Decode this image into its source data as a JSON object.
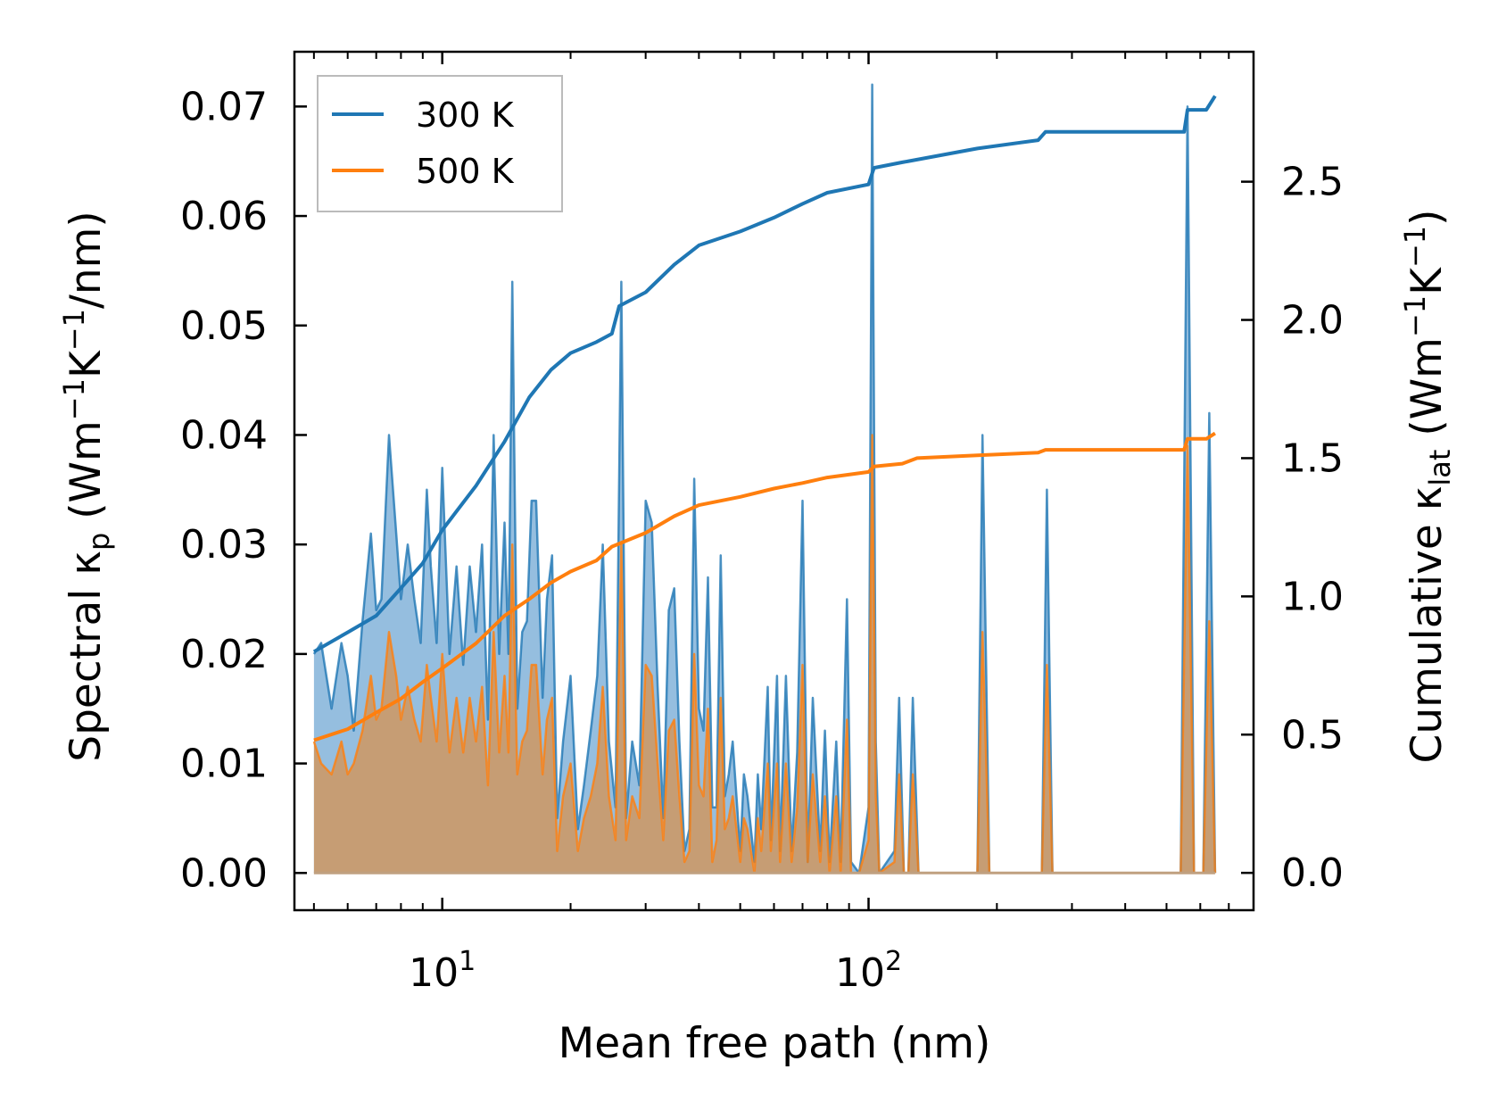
{
  "chart_data": {
    "type": "line",
    "title": "",
    "xlabel": "Mean free path (nm)",
    "xscale": "log",
    "xlim": [
      4.5,
      800
    ],
    "x_ticks": [
      {
        "value": 10,
        "base": "10",
        "exp": "1"
      },
      {
        "value": 100,
        "base": "10",
        "exp": "2"
      }
    ],
    "ylabel_left": {
      "prefix": "Spectral κ",
      "sub": "p",
      "mid": " (Wm",
      "sup1": "−1",
      "k": "K",
      "sup2": "−1",
      "suffix": "/nm)"
    },
    "ylim_left": [
      -0.0034,
      0.075
    ],
    "y_ticks_left": [
      "0.00",
      "0.01",
      "0.02",
      "0.03",
      "0.04",
      "0.05",
      "0.06",
      "0.07"
    ],
    "ylabel_right": {
      "prefix": "Cumulative κ",
      "sub": "lat",
      "mid": " (Wm",
      "sup1": "−1",
      "k": "K",
      "sup2": "−1",
      "suffix": ")"
    },
    "ylim_right": [
      -0.135,
      2.97
    ],
    "y_ticks_right": [
      "0.0",
      "0.5",
      "1.0",
      "1.5",
      "2.0",
      "2.5"
    ],
    "legend": {
      "placement": "top-left",
      "entries": [
        "300 K",
        "500 K"
      ]
    },
    "grid": false,
    "colors": {
      "s300": "#1f77b4",
      "s500": "#ff7f0e",
      "fill300": "#8ab7dc",
      "fill500": "#c89b6e"
    },
    "series": [
      {
        "name": "300 K",
        "spectral_axis": "left",
        "spectral": [
          [
            5,
            0.02
          ],
          [
            5.2,
            0.021
          ],
          [
            5.5,
            0.015
          ],
          [
            5.8,
            0.021
          ],
          [
            6,
            0.018
          ],
          [
            6.2,
            0.013
          ],
          [
            6.5,
            0.023
          ],
          [
            6.8,
            0.031
          ],
          [
            7,
            0.024
          ],
          [
            7.2,
            0.025
          ],
          [
            7.5,
            0.04
          ],
          [
            7.8,
            0.031
          ],
          [
            8,
            0.025
          ],
          [
            8.3,
            0.03
          ],
          [
            8.6,
            0.025
          ],
          [
            8.9,
            0.021
          ],
          [
            9.2,
            0.035
          ],
          [
            9.4,
            0.028
          ],
          [
            9.7,
            0.021
          ],
          [
            10,
            0.037
          ],
          [
            10.4,
            0.02
          ],
          [
            10.8,
            0.028
          ],
          [
            11.2,
            0.019
          ],
          [
            11.6,
            0.028
          ],
          [
            12,
            0.022
          ],
          [
            12.4,
            0.03
          ],
          [
            12.8,
            0.014
          ],
          [
            13.2,
            0.04
          ],
          [
            13.6,
            0.02
          ],
          [
            14,
            0.032
          ],
          [
            14.3,
            0.02
          ],
          [
            14.6,
            0.054
          ],
          [
            15,
            0.015
          ],
          [
            15.4,
            0.022
          ],
          [
            15.8,
            0.023
          ],
          [
            16.2,
            0.034
          ],
          [
            16.6,
            0.034
          ],
          [
            17.2,
            0.016
          ],
          [
            17.6,
            0.025
          ],
          [
            18.1,
            0.029
          ],
          [
            18.6,
            0.005
          ],
          [
            19.2,
            0.012
          ],
          [
            20,
            0.018
          ],
          [
            20.8,
            0.004
          ],
          [
            21.5,
            0.008
          ],
          [
            22.3,
            0.013
          ],
          [
            23.1,
            0.018
          ],
          [
            23.8,
            0.03
          ],
          [
            24.6,
            0.012
          ],
          [
            25.5,
            0.006
          ],
          [
            26.3,
            0.054
          ],
          [
            27,
            0.005
          ],
          [
            27.9,
            0.012
          ],
          [
            29,
            0.008
          ],
          [
            30,
            0.034
          ],
          [
            31,
            0.032
          ],
          [
            32,
            0.017
          ],
          [
            33,
            0.005
          ],
          [
            34,
            0.024
          ],
          [
            35,
            0.026
          ],
          [
            36,
            0.012
          ],
          [
            37,
            0.002
          ],
          [
            38,
            0.004
          ],
          [
            39,
            0.036
          ],
          [
            40,
            0.015
          ],
          [
            41,
            0.013
          ],
          [
            42,
            0.027
          ],
          [
            43,
            0.006
          ],
          [
            44,
            0.006
          ],
          [
            45,
            0.029
          ],
          [
            46,
            0.007
          ],
          [
            47,
            0.009
          ],
          [
            48,
            0.012
          ],
          [
            50,
            0.002
          ],
          [
            51,
            0.009
          ],
          [
            52,
            0.007
          ],
          [
            54,
            0.001
          ],
          [
            55,
            0.009
          ],
          [
            56,
            0.004
          ],
          [
            58,
            0.017
          ],
          [
            59,
            0.003
          ],
          [
            61,
            0.018
          ],
          [
            62,
            0.002
          ],
          [
            64,
            0.018
          ],
          [
            66,
            0.002
          ],
          [
            68,
            0.011
          ],
          [
            70,
            0.034
          ],
          [
            72,
            0.001
          ],
          [
            74,
            0.016
          ],
          [
            77,
            0.002
          ],
          [
            79,
            0.013
          ],
          [
            81,
            0.001
          ],
          [
            84,
            0.012
          ],
          [
            86,
            0.001
          ],
          [
            89,
            0.025
          ],
          [
            91,
            0.001
          ],
          [
            95,
            0
          ],
          [
            100,
            0.006
          ],
          [
            102,
            0.072
          ],
          [
            104,
            0.012
          ],
          [
            106,
            0
          ],
          [
            115,
            0.002
          ],
          [
            118,
            0.016
          ],
          [
            121,
            0
          ],
          [
            124,
            0
          ],
          [
            127,
            0.016
          ],
          [
            131,
            0
          ],
          [
            180,
            0
          ],
          [
            185,
            0.04
          ],
          [
            192,
            0
          ],
          [
            255,
            0
          ],
          [
            262,
            0.035
          ],
          [
            270,
            0
          ],
          [
            540,
            0
          ],
          [
            560,
            0.07
          ],
          [
            580,
            0
          ],
          [
            610,
            0
          ],
          [
            630,
            0.042
          ],
          [
            650,
            0
          ]
        ],
        "cumulative_axis": "right",
        "cumulative": [
          [
            5,
            0.8
          ],
          [
            6,
            0.87
          ],
          [
            7,
            0.93
          ],
          [
            8,
            1.03
          ],
          [
            9,
            1.12
          ],
          [
            10,
            1.24
          ],
          [
            12,
            1.4
          ],
          [
            14,
            1.56
          ],
          [
            16,
            1.72
          ],
          [
            18,
            1.82
          ],
          [
            20,
            1.88
          ],
          [
            23,
            1.92
          ],
          [
            25,
            1.95
          ],
          [
            26,
            2.05
          ],
          [
            30,
            2.1
          ],
          [
            35,
            2.2
          ],
          [
            40,
            2.27
          ],
          [
            50,
            2.32
          ],
          [
            60,
            2.37
          ],
          [
            70,
            2.42
          ],
          [
            80,
            2.46
          ],
          [
            100,
            2.49
          ],
          [
            103,
            2.55
          ],
          [
            120,
            2.57
          ],
          [
            180,
            2.62
          ],
          [
            250,
            2.65
          ],
          [
            260,
            2.68
          ],
          [
            550,
            2.68
          ],
          [
            560,
            2.76
          ],
          [
            620,
            2.76
          ],
          [
            650,
            2.81
          ]
        ]
      },
      {
        "name": "500 K",
        "spectral_axis": "left",
        "spectral": [
          [
            5,
            0.012
          ],
          [
            5.2,
            0.01
          ],
          [
            5.5,
            0.009
          ],
          [
            5.8,
            0.012
          ],
          [
            6,
            0.009
          ],
          [
            6.2,
            0.01
          ],
          [
            6.5,
            0.013
          ],
          [
            6.8,
            0.018
          ],
          [
            7,
            0.014
          ],
          [
            7.2,
            0.015
          ],
          [
            7.5,
            0.022
          ],
          [
            7.8,
            0.018
          ],
          [
            8,
            0.014
          ],
          [
            8.3,
            0.017
          ],
          [
            8.6,
            0.014
          ],
          [
            8.9,
            0.012
          ],
          [
            9.2,
            0.019
          ],
          [
            9.4,
            0.016
          ],
          [
            9.7,
            0.012
          ],
          [
            10,
            0.02
          ],
          [
            10.4,
            0.011
          ],
          [
            10.8,
            0.016
          ],
          [
            11.2,
            0.011
          ],
          [
            11.6,
            0.016
          ],
          [
            12,
            0.012
          ],
          [
            12.4,
            0.017
          ],
          [
            12.8,
            0.008
          ],
          [
            13.2,
            0.022
          ],
          [
            13.6,
            0.011
          ],
          [
            14,
            0.018
          ],
          [
            14.3,
            0.011
          ],
          [
            14.6,
            0.03
          ],
          [
            15,
            0.009
          ],
          [
            15.4,
            0.012
          ],
          [
            15.8,
            0.013
          ],
          [
            16.2,
            0.019
          ],
          [
            16.6,
            0.019
          ],
          [
            17.2,
            0.009
          ],
          [
            17.6,
            0.014
          ],
          [
            18.1,
            0.016
          ],
          [
            18.6,
            0.002
          ],
          [
            19.2,
            0.007
          ],
          [
            20,
            0.01
          ],
          [
            20.8,
            0.002
          ],
          [
            21.5,
            0.005
          ],
          [
            22.3,
            0.007
          ],
          [
            23.1,
            0.01
          ],
          [
            23.8,
            0.017
          ],
          [
            24.6,
            0.007
          ],
          [
            25.5,
            0.003
          ],
          [
            26.3,
            0.03
          ],
          [
            27,
            0.003
          ],
          [
            27.9,
            0.007
          ],
          [
            29,
            0.005
          ],
          [
            30,
            0.019
          ],
          [
            31,
            0.018
          ],
          [
            32,
            0.01
          ],
          [
            33,
            0.003
          ],
          [
            34,
            0.013
          ],
          [
            35,
            0.014
          ],
          [
            36,
            0.007
          ],
          [
            37,
            0.001
          ],
          [
            38,
            0.002
          ],
          [
            39,
            0.02
          ],
          [
            40,
            0.008
          ],
          [
            41,
            0.007
          ],
          [
            42,
            0.015
          ],
          [
            43,
            0.001
          ],
          [
            44,
            0.003
          ],
          [
            45,
            0.016
          ],
          [
            46,
            0.004
          ],
          [
            47,
            0.005
          ],
          [
            48,
            0.007
          ],
          [
            50,
            0.001
          ],
          [
            51,
            0.005
          ],
          [
            52,
            0.004
          ],
          [
            54,
            0
          ],
          [
            55,
            0.005
          ],
          [
            56,
            0.002
          ],
          [
            58,
            0.01
          ],
          [
            59,
            0.002
          ],
          [
            61,
            0.01
          ],
          [
            62,
            0.001
          ],
          [
            64,
            0.01
          ],
          [
            66,
            0.001
          ],
          [
            68,
            0.006
          ],
          [
            70,
            0.019
          ],
          [
            72,
            0.001
          ],
          [
            74,
            0.009
          ],
          [
            77,
            0.001
          ],
          [
            79,
            0.007
          ],
          [
            81,
            0
          ],
          [
            84,
            0.007
          ],
          [
            86,
            0
          ],
          [
            89,
            0.014
          ],
          [
            91,
            0
          ],
          [
            95,
            0
          ],
          [
            100,
            0.003
          ],
          [
            102,
            0.04
          ],
          [
            104,
            0.007
          ],
          [
            106,
            0
          ],
          [
            115,
            0.001
          ],
          [
            118,
            0.009
          ],
          [
            121,
            0
          ],
          [
            124,
            0
          ],
          [
            127,
            0.009
          ],
          [
            131,
            0
          ],
          [
            180,
            0
          ],
          [
            185,
            0.022
          ],
          [
            192,
            0
          ],
          [
            255,
            0
          ],
          [
            262,
            0.019
          ],
          [
            270,
            0
          ],
          [
            540,
            0
          ],
          [
            560,
            0.039
          ],
          [
            580,
            0
          ],
          [
            610,
            0
          ],
          [
            630,
            0.023
          ],
          [
            650,
            0
          ]
        ],
        "cumulative_axis": "right",
        "cumulative": [
          [
            5,
            0.48
          ],
          [
            6,
            0.52
          ],
          [
            7,
            0.58
          ],
          [
            8,
            0.63
          ],
          [
            9,
            0.69
          ],
          [
            10,
            0.74
          ],
          [
            12,
            0.83
          ],
          [
            14,
            0.93
          ],
          [
            16,
            0.99
          ],
          [
            18,
            1.05
          ],
          [
            20,
            1.09
          ],
          [
            23,
            1.13
          ],
          [
            25,
            1.18
          ],
          [
            30,
            1.23
          ],
          [
            35,
            1.29
          ],
          [
            40,
            1.33
          ],
          [
            50,
            1.36
          ],
          [
            60,
            1.39
          ],
          [
            70,
            1.41
          ],
          [
            80,
            1.43
          ],
          [
            100,
            1.45
          ],
          [
            103,
            1.47
          ],
          [
            120,
            1.48
          ],
          [
            130,
            1.5
          ],
          [
            180,
            1.51
          ],
          [
            250,
            1.52
          ],
          [
            260,
            1.53
          ],
          [
            550,
            1.53
          ],
          [
            560,
            1.57
          ],
          [
            620,
            1.57
          ],
          [
            650,
            1.59
          ]
        ]
      }
    ]
  }
}
